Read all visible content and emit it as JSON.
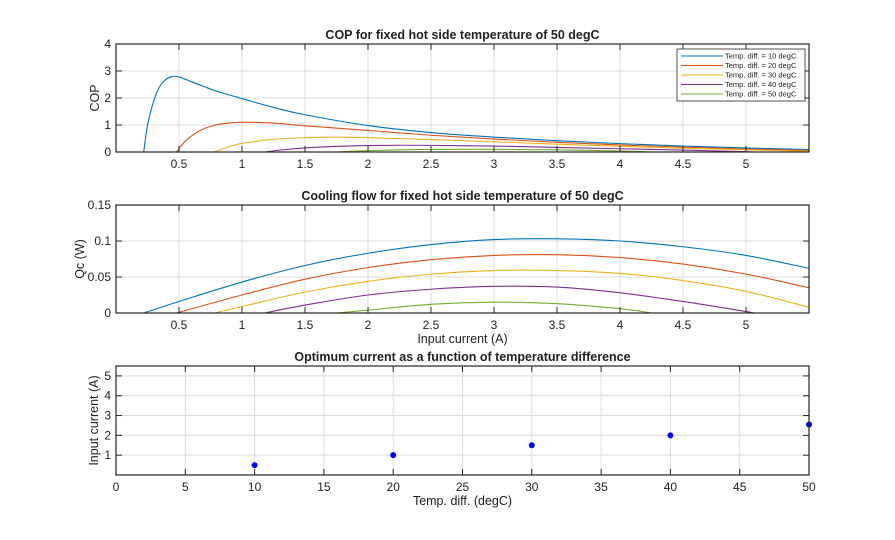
{
  "chart_data": [
    {
      "type": "line",
      "title": "COP for fixed hot side temperature of 50 degC",
      "xlabel": "",
      "ylabel": "COP",
      "xlim": [
        0,
        5.5
      ],
      "ylim": [
        0,
        4
      ],
      "xticks": [
        0.5,
        1,
        1.5,
        2,
        2.5,
        3,
        3.5,
        4,
        4.5,
        5
      ],
      "xtick_labels": [
        "0.5",
        "1",
        "1.5",
        "2",
        "2.5",
        "3",
        "3.5",
        "4",
        "4.5",
        "5"
      ],
      "yticks": [
        0,
        1,
        2,
        3,
        4
      ],
      "ytick_labels": [
        "0",
        "1",
        "2",
        "3",
        "4"
      ],
      "grid": true,
      "legend_position": "top-right",
      "series": [
        {
          "name": "Temp. diff. = 10 degC",
          "color": "#0072BD",
          "x": [
            0.22,
            0.25,
            0.3,
            0.35,
            0.4,
            0.45,
            0.5,
            0.6,
            0.7,
            0.8,
            1.0,
            1.25,
            1.5,
            2.0,
            2.5,
            3.0,
            3.5,
            4.0,
            4.5,
            5.0,
            5.5
          ],
          "y": [
            0.0,
            1.0,
            1.9,
            2.45,
            2.7,
            2.8,
            2.78,
            2.6,
            2.42,
            2.25,
            1.98,
            1.65,
            1.38,
            0.98,
            0.72,
            0.55,
            0.42,
            0.31,
            0.22,
            0.15,
            0.09
          ]
        },
        {
          "name": "Temp. diff. = 20 degC",
          "color": "#D95319",
          "x": [
            0.48,
            0.55,
            0.65,
            0.75,
            0.85,
            1.0,
            1.25,
            1.5,
            2.0,
            2.5,
            3.0,
            3.5,
            4.0,
            4.5,
            5.0,
            5.5
          ],
          "y": [
            0.0,
            0.4,
            0.75,
            0.95,
            1.05,
            1.1,
            1.07,
            0.97,
            0.8,
            0.62,
            0.48,
            0.36,
            0.26,
            0.18,
            0.11,
            0.06
          ]
        },
        {
          "name": "Temp. diff. = 30 degC",
          "color": "#EDB120",
          "x": [
            0.78,
            0.9,
            1.0,
            1.25,
            1.5,
            1.75,
            2.0,
            2.5,
            3.0,
            3.5,
            4.0,
            4.5,
            5.0,
            5.5
          ],
          "y": [
            0.0,
            0.2,
            0.32,
            0.47,
            0.53,
            0.55,
            0.53,
            0.46,
            0.38,
            0.29,
            0.21,
            0.14,
            0.08,
            0.03
          ]
        },
        {
          "name": "Temp. diff. = 40 degC",
          "color": "#7E2F8E",
          "x": [
            1.18,
            1.3,
            1.5,
            1.75,
            2.0,
            2.25,
            2.5,
            3.0,
            3.5,
            4.0,
            4.5,
            5.0,
            5.05
          ],
          "y": [
            0.0,
            0.07,
            0.15,
            0.21,
            0.24,
            0.25,
            0.245,
            0.22,
            0.17,
            0.12,
            0.07,
            0.01,
            0.0
          ]
        },
        {
          "name": "Temp. diff. = 50 degC",
          "color": "#77AC30",
          "x": [
            1.75,
            2.0,
            2.25,
            2.5,
            3.0,
            3.5,
            4.0,
            4.25
          ],
          "y": [
            0.0,
            0.05,
            0.08,
            0.095,
            0.1,
            0.08,
            0.04,
            0.0
          ]
        }
      ]
    },
    {
      "type": "line",
      "title": "Cooling flow for fixed hot side temperature of 50 degC",
      "xlabel": "Input current (A)",
      "ylabel": "Qc (W)",
      "xlim": [
        0,
        5.5
      ],
      "ylim": [
        0,
        0.15
      ],
      "xticks": [
        0.5,
        1,
        1.5,
        2,
        2.5,
        3,
        3.5,
        4,
        4.5,
        5
      ],
      "xtick_labels": [
        "0.5",
        "1",
        "1.5",
        "2",
        "2.5",
        "3",
        "3.5",
        "4",
        "4.5",
        "5"
      ],
      "yticks": [
        0,
        0.05,
        0.1,
        0.15
      ],
      "ytick_labels": [
        "0",
        "0.05",
        "0.1",
        "0.15"
      ],
      "grid": true,
      "series": [
        {
          "name": "Temp. diff. = 10 degC",
          "color": "#0072BD",
          "x": [
            0.22,
            0.5,
            1.0,
            1.5,
            2.0,
            2.5,
            3.0,
            3.5,
            4.0,
            4.5,
            5.0,
            5.5
          ],
          "y": [
            0.0,
            0.016,
            0.043,
            0.066,
            0.083,
            0.095,
            0.102,
            0.103,
            0.1,
            0.092,
            0.08,
            0.062
          ]
        },
        {
          "name": "Temp. diff. = 20 degC",
          "color": "#D95319",
          "x": [
            0.48,
            1.0,
            1.5,
            2.0,
            2.5,
            3.0,
            3.5,
            4.0,
            4.5,
            5.0,
            5.5
          ],
          "y": [
            0.0,
            0.025,
            0.047,
            0.063,
            0.074,
            0.08,
            0.081,
            0.077,
            0.068,
            0.054,
            0.035
          ]
        },
        {
          "name": "Temp. diff. = 30 degC",
          "color": "#EDB120",
          "x": [
            0.78,
            1.0,
            1.5,
            2.0,
            2.5,
            3.0,
            3.5,
            4.0,
            4.5,
            5.0,
            5.5
          ],
          "y": [
            0.0,
            0.009,
            0.029,
            0.044,
            0.054,
            0.059,
            0.059,
            0.055,
            0.045,
            0.03,
            0.008
          ]
        },
        {
          "name": "Temp. diff. = 40 degC",
          "color": "#7E2F8E",
          "x": [
            1.18,
            1.5,
            2.0,
            2.5,
            3.0,
            3.5,
            4.0,
            4.5,
            5.0,
            5.05
          ],
          "y": [
            0.0,
            0.011,
            0.025,
            0.033,
            0.037,
            0.036,
            0.028,
            0.016,
            0.002,
            0.0
          ]
        },
        {
          "name": "Temp. diff. = 50 degC",
          "color": "#77AC30",
          "x": [
            1.75,
            2.0,
            2.5,
            3.0,
            3.5,
            4.0,
            4.25
          ],
          "y": [
            0.0,
            0.004,
            0.012,
            0.015,
            0.013,
            0.006,
            0.0
          ]
        }
      ]
    },
    {
      "type": "scatter",
      "title": "Optimum current as a function of temperature difference",
      "xlabel": "Temp. diff. (degC)",
      "ylabel": "Input current (A)",
      "xlim": [
        0,
        50
      ],
      "ylim": [
        0,
        5.5
      ],
      "xticks": [
        0,
        5,
        10,
        15,
        20,
        25,
        30,
        35,
        40,
        45,
        50
      ],
      "xtick_labels": [
        "0",
        "5",
        "10",
        "15",
        "20",
        "25",
        "30",
        "35",
        "40",
        "45",
        "50"
      ],
      "yticks": [
        1,
        2,
        3,
        4,
        5
      ],
      "ytick_labels": [
        "1",
        "2",
        "3",
        "4",
        "5"
      ],
      "grid": true,
      "series": [
        {
          "name": "Optimum current",
          "color": "#0000FF",
          "x": [
            10,
            20,
            30,
            40,
            50
          ],
          "y": [
            0.5,
            1.0,
            1.5,
            2.0,
            2.55
          ]
        }
      ]
    }
  ]
}
